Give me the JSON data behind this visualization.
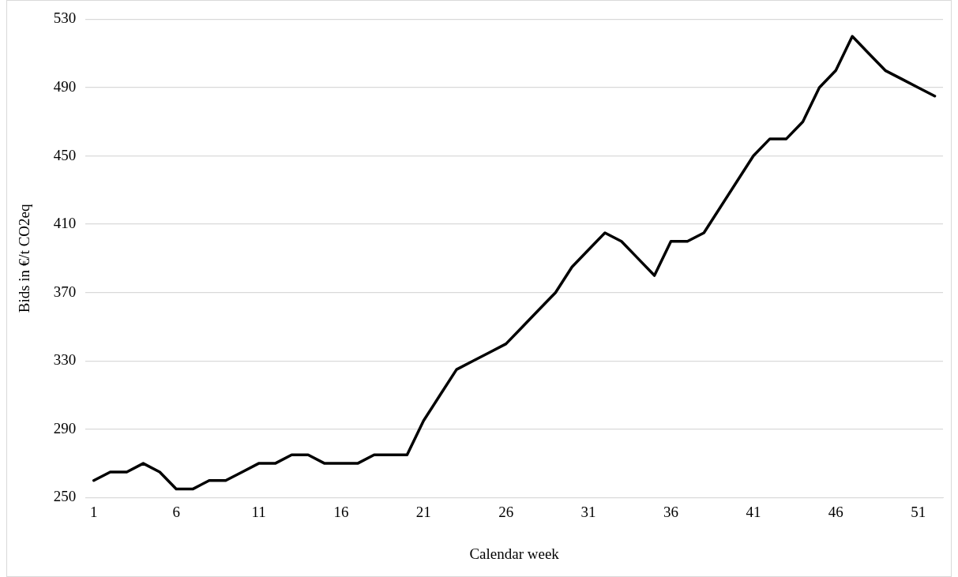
{
  "chart_data": {
    "type": "line",
    "xlabel": "Calendar week",
    "ylabel": "Bids in €/t CO2eq",
    "x": [
      1,
      2,
      3,
      4,
      5,
      6,
      7,
      8,
      9,
      10,
      11,
      12,
      13,
      14,
      15,
      16,
      17,
      18,
      19,
      20,
      21,
      22,
      23,
      24,
      25,
      26,
      27,
      28,
      29,
      30,
      31,
      32,
      33,
      34,
      35,
      36,
      37,
      38,
      39,
      40,
      41,
      42,
      43,
      44,
      45,
      46,
      47,
      48,
      49,
      50,
      51,
      52
    ],
    "xlim": [
      0.5,
      52.5
    ],
    "xticks": [
      1,
      6,
      11,
      16,
      21,
      26,
      31,
      36,
      41,
      46,
      51
    ],
    "series": [
      {
        "color": "#000000",
        "values": [
          260,
          265,
          265,
          270,
          265,
          255,
          255,
          260,
          260,
          265,
          270,
          270,
          275,
          275,
          270,
          270,
          270,
          275,
          275,
          275,
          295,
          310,
          325,
          330,
          335,
          340,
          350,
          360,
          370,
          385,
          395,
          405,
          400,
          390,
          380,
          400,
          400,
          405,
          420,
          435,
          450,
          460,
          460,
          470,
          490,
          500,
          520,
          510,
          500,
          495,
          490,
          485
        ]
      }
    ],
    "ylim": [
      250,
      530
    ],
    "yticks": [
      250,
      290,
      330,
      370,
      410,
      450,
      490,
      530
    ],
    "grid": "y",
    "legend": false,
    "marker": "none",
    "line_style": "solid"
  }
}
